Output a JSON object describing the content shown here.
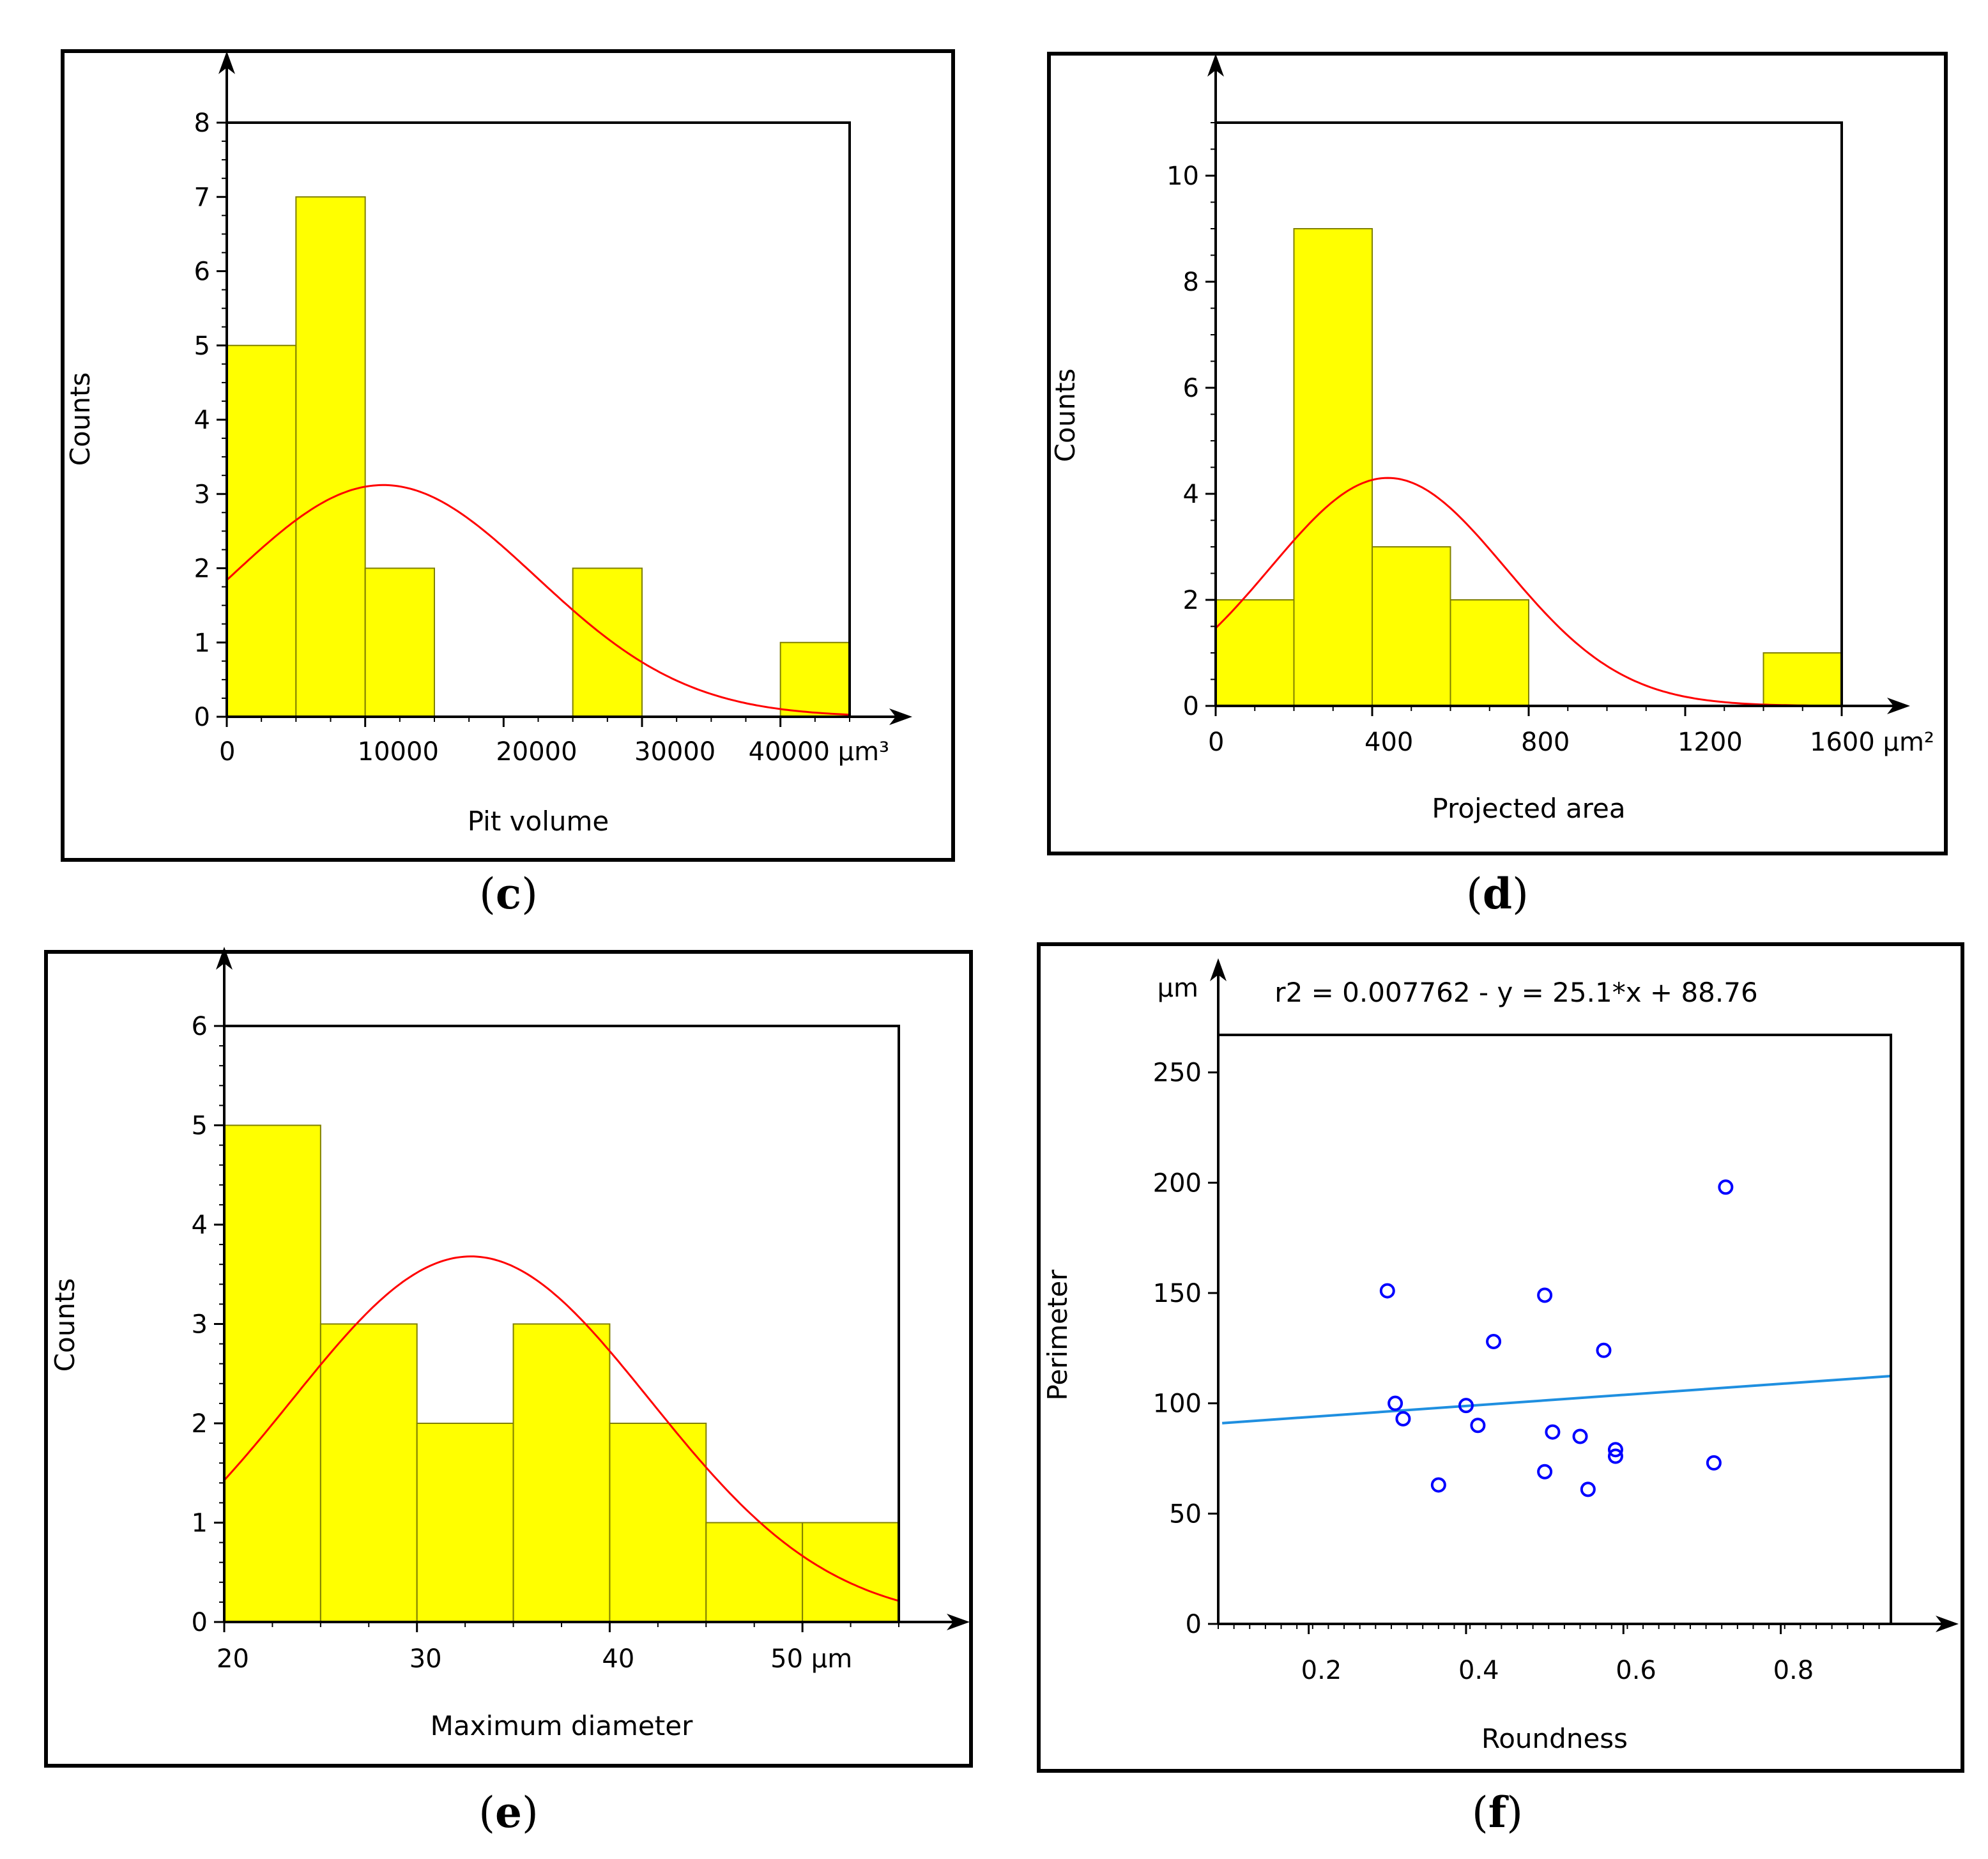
{
  "colors": {
    "bar": "#ffff00",
    "bar_edge": "#808000",
    "curve": "#ff0000",
    "points": "#0000ff",
    "fit_line": "#1f8fe0"
  },
  "chart_data": [
    {
      "type": "bar",
      "panel": "c",
      "caption": "(c)",
      "ylabel": "Counts",
      "xlabel": "Pit volume",
      "x_unit": "µm³",
      "xlim": [
        0,
        45000
      ],
      "ylim": [
        0,
        8
      ],
      "bins": [
        {
          "x0": 0,
          "x1": 5000,
          "count": 5
        },
        {
          "x0": 5000,
          "x1": 10000,
          "count": 7
        },
        {
          "x0": 10000,
          "x1": 15000,
          "count": 2
        },
        {
          "x0": 25000,
          "x1": 30000,
          "count": 2
        },
        {
          "x0": 40000,
          "x1": 45000,
          "count": 1
        }
      ],
      "fit_curve": {
        "type": "normal",
        "mean": 11300,
        "peak": 3.12,
        "sd": 11000
      },
      "x_ticks": [
        {
          "v": 0,
          "label": "0"
        },
        {
          "v": 10000,
          "label": "10000"
        },
        {
          "v": 20000,
          "label": "20000"
        },
        {
          "v": 30000,
          "label": "30000"
        },
        {
          "v": 40000,
          "label": "40000"
        }
      ],
      "y_ticks": [
        {
          "v": 0,
          "label": "0"
        },
        {
          "v": 1,
          "label": "1"
        },
        {
          "v": 2,
          "label": "2"
        },
        {
          "v": 3,
          "label": "3"
        },
        {
          "v": 4,
          "label": "4"
        },
        {
          "v": 5,
          "label": "5"
        },
        {
          "v": 6,
          "label": "6"
        },
        {
          "v": 7,
          "label": "7"
        },
        {
          "v": 8,
          "label": "8"
        }
      ],
      "x_minor_step": 2500,
      "y_minor_step": 0.25
    },
    {
      "type": "bar",
      "panel": "d",
      "caption": "(d)",
      "ylabel": "Counts",
      "xlabel": "Projected area",
      "x_unit": "µm²",
      "xlim": [
        0,
        1600
      ],
      "ylim": [
        0,
        11
      ],
      "bins": [
        {
          "x0": 0,
          "x1": 200,
          "count": 2
        },
        {
          "x0": 200,
          "x1": 400,
          "count": 9
        },
        {
          "x0": 400,
          "x1": 600,
          "count": 3
        },
        {
          "x0": 600,
          "x1": 800,
          "count": 2
        },
        {
          "x0": 1400,
          "x1": 1600,
          "count": 1
        }
      ],
      "fit_curve": {
        "type": "normal",
        "mean": 440,
        "peak": 4.3,
        "sd": 300
      },
      "x_ticks": [
        {
          "v": 0,
          "label": "0"
        },
        {
          "v": 400,
          "label": "400"
        },
        {
          "v": 800,
          "label": "800"
        },
        {
          "v": 1200,
          "label": "1200"
        },
        {
          "v": 1600,
          "label": "1600"
        }
      ],
      "y_ticks": [
        {
          "v": 0,
          "label": "0"
        },
        {
          "v": 2,
          "label": "2"
        },
        {
          "v": 4,
          "label": "4"
        },
        {
          "v": 6,
          "label": "6"
        },
        {
          "v": 8,
          "label": "8"
        },
        {
          "v": 10,
          "label": "10"
        }
      ],
      "x_minor_step": 100,
      "y_minor_step": 0.5
    },
    {
      "type": "bar",
      "panel": "e",
      "caption": "(e)",
      "ylabel": "Counts",
      "xlabel": "Maximum diameter",
      "x_unit": "µm",
      "xlim": [
        20,
        55
      ],
      "ylim": [
        0,
        6
      ],
      "bins": [
        {
          "x0": 20,
          "x1": 25,
          "count": 5
        },
        {
          "x0": 25,
          "x1": 30,
          "count": 3
        },
        {
          "x0": 30,
          "x1": 35,
          "count": 2
        },
        {
          "x0": 35,
          "x1": 40,
          "count": 3
        },
        {
          "x0": 40,
          "x1": 45,
          "count": 2
        },
        {
          "x0": 45,
          "x1": 50,
          "count": 1
        },
        {
          "x0": 50,
          "x1": 55,
          "count": 1
        }
      ],
      "fit_curve": {
        "type": "normal",
        "mean": 32.8,
        "peak": 3.68,
        "sd": 9.3
      },
      "x_ticks": [
        {
          "v": 20,
          "label": "20"
        },
        {
          "v": 30,
          "label": "30"
        },
        {
          "v": 40,
          "label": "40"
        },
        {
          "v": 50,
          "label": "50"
        }
      ],
      "y_ticks": [
        {
          "v": 0,
          "label": "0"
        },
        {
          "v": 1,
          "label": "1"
        },
        {
          "v": 2,
          "label": "2"
        },
        {
          "v": 3,
          "label": "3"
        },
        {
          "v": 4,
          "label": "4"
        },
        {
          "v": 5,
          "label": "5"
        },
        {
          "v": 6,
          "label": "6"
        }
      ],
      "x_minor_step": 2.5,
      "y_minor_step": 0.2
    },
    {
      "type": "scatter",
      "panel": "f",
      "caption": "(f)",
      "ylabel": "Perimeter",
      "y_unit": "µm",
      "xlabel": "Roundness",
      "annotation": "r2 = 0.007762   -   y = 25.1*x + 88.76",
      "xlim": [
        0.085,
        0.94
      ],
      "ylim": [
        0,
        267
      ],
      "fit_line": {
        "slope": 25.1,
        "intercept": 88.76
      },
      "x_ticks": [
        {
          "v": 0.2,
          "label": "0.2"
        },
        {
          "v": 0.4,
          "label": "0.4"
        },
        {
          "v": 0.6,
          "label": "0.6"
        },
        {
          "v": 0.8,
          "label": "0.8"
        }
      ],
      "y_ticks": [
        {
          "v": 0,
          "label": "0"
        },
        {
          "v": 50,
          "label": "50"
        },
        {
          "v": 100,
          "label": "100"
        },
        {
          "v": 150,
          "label": "150"
        },
        {
          "v": 200,
          "label": "200"
        },
        {
          "v": 250,
          "label": "250"
        }
      ],
      "x_minor_step": 0.02,
      "points": [
        {
          "x": 0.3,
          "y": 151
        },
        {
          "x": 0.31,
          "y": 100
        },
        {
          "x": 0.32,
          "y": 93
        },
        {
          "x": 0.365,
          "y": 63
        },
        {
          "x": 0.4,
          "y": 99
        },
        {
          "x": 0.415,
          "y": 90
        },
        {
          "x": 0.435,
          "y": 128
        },
        {
          "x": 0.5,
          "y": 149
        },
        {
          "x": 0.5,
          "y": 69
        },
        {
          "x": 0.51,
          "y": 87
        },
        {
          "x": 0.545,
          "y": 85
        },
        {
          "x": 0.555,
          "y": 61
        },
        {
          "x": 0.575,
          "y": 124
        },
        {
          "x": 0.59,
          "y": 79
        },
        {
          "x": 0.59,
          "y": 76
        },
        {
          "x": 0.715,
          "y": 73
        },
        {
          "x": 0.73,
          "y": 198
        }
      ]
    }
  ]
}
